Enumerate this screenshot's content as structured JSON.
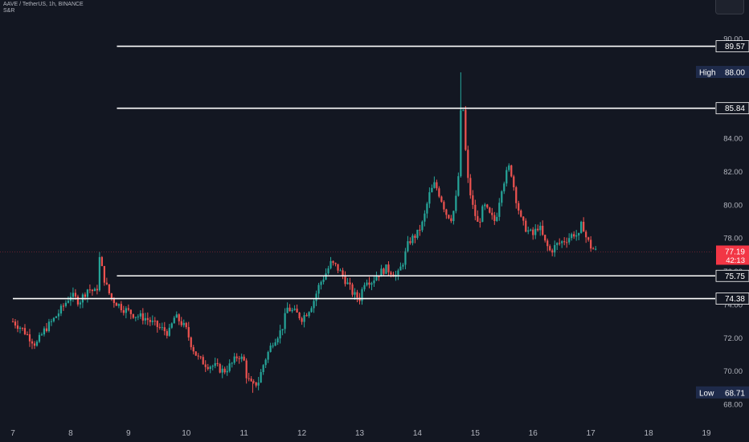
{
  "header": {
    "symbol_line": "AAVE / TetherUS, 1h, BINANCE",
    "indicator": "S&R"
  },
  "colors": {
    "background": "#131722",
    "up": "#26a69a",
    "down": "#ef5350",
    "level_line": "#ffffff",
    "axis_text": "#b2b5be",
    "high_low_tag": "#1e2a4a",
    "price_tag": "#f23645"
  },
  "chart_data": {
    "type": "candlestick",
    "ylim": [
      67.2,
      91.0
    ],
    "xlim": [
      7.0,
      19.0
    ],
    "y_ticks": [
      "68.00",
      "70.00",
      "72.00",
      "74.00",
      "76.00",
      "78.00",
      "80.00",
      "82.00",
      "84.00",
      "90.00"
    ],
    "x_ticks": [
      {
        "value": 7,
        "label": "7"
      },
      {
        "value": 8,
        "label": "8"
      },
      {
        "value": 9,
        "label": "9"
      },
      {
        "value": 10,
        "label": "10"
      },
      {
        "value": 11,
        "label": "11"
      },
      {
        "value": 12,
        "label": "12"
      },
      {
        "value": 13,
        "label": "13"
      },
      {
        "value": 14,
        "label": "14"
      },
      {
        "value": 15,
        "label": "15"
      },
      {
        "value": 16,
        "label": "16"
      },
      {
        "value": 17,
        "label": "17"
      },
      {
        "value": 18,
        "label": "18"
      },
      {
        "value": 19,
        "label": "19"
      }
    ],
    "levels": [
      {
        "value": 89.57,
        "label": "89.57",
        "start_x": 8.8
      },
      {
        "value": 85.84,
        "label": "85.84",
        "start_x": 8.8
      },
      {
        "value": 75.75,
        "label": "75.75",
        "start_x": 8.8
      },
      {
        "value": 74.38,
        "label": "74.38",
        "start_x": 7.0
      }
    ],
    "high": {
      "label": "High",
      "value": "88.00",
      "price": 88.0
    },
    "low": {
      "label": "Low",
      "value": "68.71",
      "price": 68.71
    },
    "last_price": {
      "value": "77.19",
      "countdown": "42:13",
      "price": 77.19
    },
    "path_points": [
      [
        7.0,
        73.0
      ],
      [
        7.15,
        72.6
      ],
      [
        7.3,
        72.0
      ],
      [
        7.4,
        71.6
      ],
      [
        7.55,
        72.5
      ],
      [
        7.7,
        73.1
      ],
      [
        7.85,
        73.8
      ],
      [
        8.0,
        74.6
      ],
      [
        8.15,
        74.2
      ],
      [
        8.3,
        75.0
      ],
      [
        8.45,
        74.7
      ],
      [
        8.5,
        76.8
      ],
      [
        8.6,
        75.3
      ],
      [
        8.7,
        74.4
      ],
      [
        8.9,
        73.8
      ],
      [
        9.1,
        73.4
      ],
      [
        9.3,
        73.2
      ],
      [
        9.5,
        72.7
      ],
      [
        9.7,
        72.3
      ],
      [
        9.8,
        73.3
      ],
      [
        9.9,
        73.0
      ],
      [
        10.0,
        72.5
      ],
      [
        10.1,
        71.5
      ],
      [
        10.2,
        70.8
      ],
      [
        10.35,
        70.4
      ],
      [
        10.5,
        70.3
      ],
      [
        10.65,
        70.0
      ],
      [
        10.8,
        70.5
      ],
      [
        10.9,
        71.0
      ],
      [
        11.0,
        70.6
      ],
      [
        11.05,
        69.6
      ],
      [
        11.15,
        69.1
      ],
      [
        11.25,
        69.4
      ],
      [
        11.35,
        70.6
      ],
      [
        11.5,
        71.8
      ],
      [
        11.65,
        72.5
      ],
      [
        11.75,
        73.8
      ],
      [
        11.9,
        73.5
      ],
      [
        12.0,
        73.2
      ],
      [
        12.1,
        73.6
      ],
      [
        12.2,
        74.2
      ],
      [
        12.3,
        75.2
      ],
      [
        12.4,
        75.8
      ],
      [
        12.5,
        76.5
      ],
      [
        12.6,
        76.3
      ],
      [
        12.7,
        75.8
      ],
      [
        12.8,
        75.2
      ],
      [
        12.9,
        74.6
      ],
      [
        13.0,
        74.4
      ],
      [
        13.1,
        75.6
      ],
      [
        13.2,
        75.4
      ],
      [
        13.3,
        75.8
      ],
      [
        13.45,
        76.2
      ],
      [
        13.55,
        76.0
      ],
      [
        13.65,
        75.7
      ],
      [
        13.75,
        76.6
      ],
      [
        13.85,
        77.8
      ],
      [
        14.0,
        78.3
      ],
      [
        14.1,
        79.0
      ],
      [
        14.2,
        80.6
      ],
      [
        14.3,
        81.3
      ],
      [
        14.4,
        80.5
      ],
      [
        14.5,
        79.5
      ],
      [
        14.6,
        79.2
      ],
      [
        14.7,
        81.0
      ],
      [
        14.75,
        85.5
      ],
      [
        14.8,
        85.8
      ],
      [
        14.85,
        82.0
      ],
      [
        14.95,
        80.0
      ],
      [
        15.05,
        78.8
      ],
      [
        15.15,
        80.0
      ],
      [
        15.25,
        79.4
      ],
      [
        15.35,
        79.0
      ],
      [
        15.45,
        81.0
      ],
      [
        15.55,
        82.0
      ],
      [
        15.6,
        82.4
      ],
      [
        15.7,
        80.5
      ],
      [
        15.8,
        79.0
      ],
      [
        15.9,
        78.5
      ],
      [
        16.0,
        78.2
      ],
      [
        16.1,
        78.8
      ],
      [
        16.2,
        77.8
      ],
      [
        16.3,
        77.2
      ],
      [
        16.4,
        77.6
      ],
      [
        16.5,
        77.8
      ],
      [
        16.6,
        78.0
      ],
      [
        16.7,
        78.3
      ],
      [
        16.8,
        78.1
      ],
      [
        16.85,
        79.1
      ],
      [
        16.9,
        78.2
      ],
      [
        17.0,
        77.5
      ],
      [
        17.1,
        77.19
      ]
    ]
  }
}
